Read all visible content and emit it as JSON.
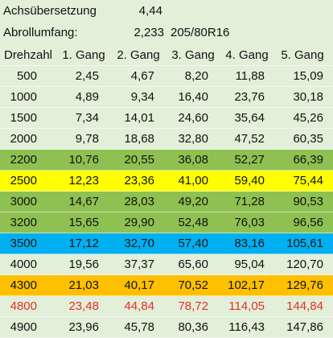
{
  "header": {
    "axle_ratio_label": "Achsübersetzung",
    "axle_ratio": "4,44",
    "circumference_label": "Abrollumfang:",
    "circumference": "2,233",
    "tire": "205/80R16"
  },
  "table": {
    "columns": [
      "Drehzahl",
      "1. Gang",
      "2. Gang",
      "3. Gang",
      "4. Gang",
      "5. Gang"
    ],
    "rows": [
      [
        "500",
        "2,45",
        "4,67",
        "8,20",
        "11,88",
        "15,09"
      ],
      [
        "1000",
        "4,89",
        "9,34",
        "16,40",
        "23,76",
        "30,18"
      ],
      [
        "1500",
        "7,34",
        "14,01",
        "24,60",
        "35,64",
        "45,26"
      ],
      [
        "2000",
        "9,78",
        "18,68",
        "32,80",
        "47,52",
        "60,35"
      ],
      [
        "2200",
        "10,76",
        "20,55",
        "36,08",
        "52,27",
        "66,39"
      ],
      [
        "2500",
        "12,23",
        "23,36",
        "41,00",
        "59,40",
        "75,44"
      ],
      [
        "3000",
        "14,67",
        "28,03",
        "49,20",
        "71,28",
        "90,53"
      ],
      [
        "3200",
        "15,65",
        "29,90",
        "52,48",
        "76,03",
        "96,56"
      ],
      [
        "3500",
        "17,12",
        "32,70",
        "57,40",
        "83,16",
        "105,61"
      ],
      [
        "4000",
        "19,56",
        "37,37",
        "65,60",
        "95,04",
        "120,70"
      ],
      [
        "4300",
        "21,03",
        "40,17",
        "70,52",
        "102,17",
        "129,76"
      ],
      [
        "4800",
        "23,48",
        "44,84",
        "78,72",
        "114,05",
        "144,84"
      ],
      [
        "4900",
        "23,96",
        "45,78",
        "80,36",
        "116,43",
        "147,86"
      ]
    ]
  }
}
